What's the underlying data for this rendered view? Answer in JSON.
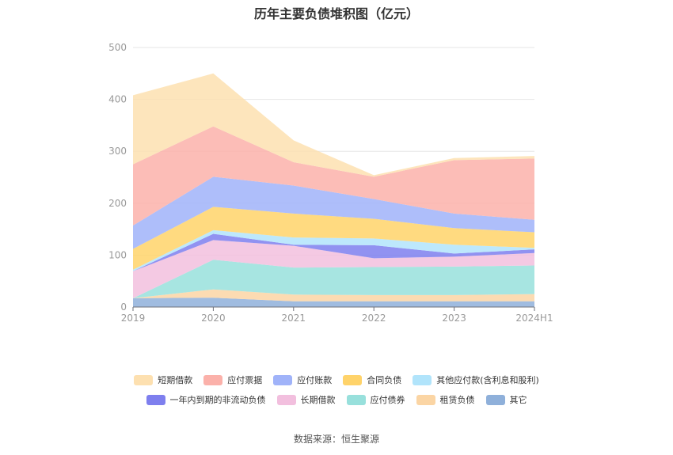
{
  "chart_data": {
    "type": "area",
    "stacked": true,
    "title": "历年主要负债堆积图（亿元）",
    "categories": [
      "2019",
      "2020",
      "2021",
      "2022",
      "2023",
      "2024H1"
    ],
    "y_ticks": [
      0,
      100,
      200,
      300,
      400,
      500
    ],
    "ylim": [
      0,
      500
    ],
    "grid": true,
    "legend_position": "bottom",
    "series": [
      {
        "name": "其它",
        "color": "#8fb0da",
        "values": [
          17,
          18,
          11,
          11,
          11,
          11
        ]
      },
      {
        "name": "租赁负债",
        "color": "#fbd5a4",
        "values": [
          0,
          16,
          13,
          12,
          12,
          14
        ]
      },
      {
        "name": "应付债券",
        "color": "#98e0dc",
        "values": [
          0,
          57,
          52,
          54,
          55,
          55
        ]
      },
      {
        "name": "长期借款",
        "color": "#f2bfde",
        "values": [
          52,
          38,
          42,
          17,
          19,
          24
        ]
      },
      {
        "name": "一年内到期的非流动负债",
        "color": "#7e7fee",
        "values": [
          0,
          12,
          2,
          25,
          6,
          7
        ]
      },
      {
        "name": "其他应付款(含利息和股利)",
        "color": "#b1e4fb",
        "values": [
          3,
          7,
          14,
          13,
          17,
          3
        ]
      },
      {
        "name": "合同负债",
        "color": "#ffd36a",
        "values": [
          40,
          45,
          46,
          38,
          32,
          30
        ]
      },
      {
        "name": "应付账款",
        "color": "#a0b3f9",
        "values": [
          45,
          58,
          54,
          38,
          28,
          24
        ]
      },
      {
        "name": "应付票据",
        "color": "#fbb1aa",
        "values": [
          118,
          97,
          45,
          43,
          103,
          118
        ]
      },
      {
        "name": "短期借款",
        "color": "#fde0b0",
        "values": [
          133,
          102,
          42,
          3,
          4,
          5
        ]
      }
    ]
  },
  "legend": {
    "row1": [
      "短期借款",
      "应付票据",
      "应付账款",
      "合同负债",
      "其他应付款(含利息和股利)"
    ],
    "row2": [
      "一年内到期的非流动负债",
      "长期借款",
      "应付债券",
      "租赁负债",
      "其它"
    ]
  },
  "source_text": "数据来源：恒生聚源"
}
